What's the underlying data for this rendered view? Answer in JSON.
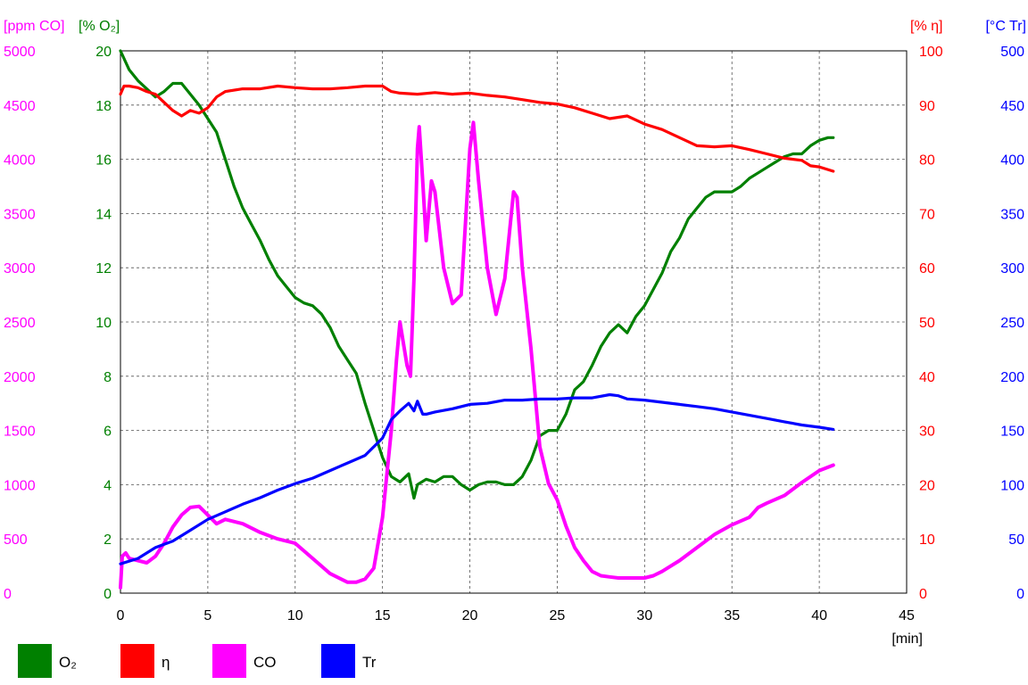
{
  "chart_data": {
    "type": "line",
    "x_unit": "[min]",
    "xlim": [
      0,
      45
    ],
    "x_ticks": [
      0,
      5,
      10,
      15,
      20,
      25,
      30,
      35,
      40,
      45
    ],
    "axes": [
      {
        "id": "co",
        "unit": "[ppm CO]",
        "color": "#ff00ff",
        "side": "left",
        "lim": [
          0,
          5000
        ],
        "ticks": [
          0,
          500,
          1000,
          1500,
          2000,
          2500,
          3000,
          3500,
          4000,
          4500,
          5000
        ]
      },
      {
        "id": "o2",
        "unit": "[% O₂]",
        "color": "#008000",
        "side": "left",
        "lim": [
          0,
          20
        ],
        "ticks": [
          0,
          2,
          4,
          6,
          8,
          10,
          12,
          14,
          16,
          18,
          20
        ]
      },
      {
        "id": "eta",
        "unit": "[% η]",
        "color": "#ff0000",
        "side": "right",
        "lim": [
          0,
          100
        ],
        "ticks": [
          0,
          10,
          20,
          30,
          40,
          50,
          60,
          70,
          80,
          90,
          100
        ]
      },
      {
        "id": "tr",
        "unit": "[°C Tr]",
        "color": "#0000ff",
        "side": "right",
        "lim": [
          0,
          500
        ],
        "ticks": [
          0,
          50,
          100,
          150,
          200,
          250,
          300,
          350,
          400,
          450,
          500
        ]
      }
    ],
    "grid": true,
    "legend_placement": "bottom",
    "series": [
      {
        "name": "O₂",
        "axis": "o2",
        "color": "#008000",
        "points": [
          [
            0,
            20
          ],
          [
            0.5,
            19.3
          ],
          [
            1,
            18.9
          ],
          [
            1.5,
            18.6
          ],
          [
            2,
            18.3
          ],
          [
            2.5,
            18.5
          ],
          [
            3,
            18.8
          ],
          [
            3.5,
            18.8
          ],
          [
            4,
            18.4
          ],
          [
            4.5,
            18.0
          ],
          [
            5,
            17.5
          ],
          [
            5.5,
            17.0
          ],
          [
            6,
            16.0
          ],
          [
            6.5,
            15.0
          ],
          [
            7,
            14.2
          ],
          [
            7.5,
            13.6
          ],
          [
            8,
            13.0
          ],
          [
            8.5,
            12.3
          ],
          [
            9,
            11.7
          ],
          [
            9.5,
            11.3
          ],
          [
            10,
            10.9
          ],
          [
            10.5,
            10.7
          ],
          [
            11,
            10.6
          ],
          [
            11.5,
            10.3
          ],
          [
            12,
            9.8
          ],
          [
            12.5,
            9.1
          ],
          [
            13,
            8.6
          ],
          [
            13.5,
            8.1
          ],
          [
            14,
            7.0
          ],
          [
            14.5,
            6.0
          ],
          [
            15,
            5.0
          ],
          [
            15.5,
            4.3
          ],
          [
            16,
            4.1
          ],
          [
            16.5,
            4.4
          ],
          [
            16.8,
            3.5
          ],
          [
            17,
            4.0
          ],
          [
            17.5,
            4.2
          ],
          [
            18,
            4.1
          ],
          [
            18.5,
            4.3
          ],
          [
            19,
            4.3
          ],
          [
            19.5,
            4.0
          ],
          [
            20,
            3.8
          ],
          [
            20.5,
            4.0
          ],
          [
            21,
            4.1
          ],
          [
            21.5,
            4.1
          ],
          [
            22,
            4.0
          ],
          [
            22.5,
            4.0
          ],
          [
            23,
            4.3
          ],
          [
            23.5,
            4.9
          ],
          [
            24,
            5.8
          ],
          [
            24.5,
            6.0
          ],
          [
            25,
            6.0
          ],
          [
            25.5,
            6.6
          ],
          [
            26,
            7.5
          ],
          [
            26.5,
            7.8
          ],
          [
            27,
            8.4
          ],
          [
            27.5,
            9.1
          ],
          [
            28,
            9.6
          ],
          [
            28.5,
            9.9
          ],
          [
            29,
            9.6
          ],
          [
            29.5,
            10.2
          ],
          [
            30,
            10.6
          ],
          [
            30.5,
            11.2
          ],
          [
            31,
            11.8
          ],
          [
            31.5,
            12.6
          ],
          [
            32,
            13.1
          ],
          [
            32.5,
            13.8
          ],
          [
            33,
            14.2
          ],
          [
            33.5,
            14.6
          ],
          [
            34,
            14.8
          ],
          [
            34.5,
            14.8
          ],
          [
            35,
            14.8
          ],
          [
            35.5,
            15.0
          ],
          [
            36,
            15.3
          ],
          [
            36.5,
            15.5
          ],
          [
            37,
            15.7
          ],
          [
            37.5,
            15.9
          ],
          [
            38,
            16.1
          ],
          [
            38.5,
            16.2
          ],
          [
            39,
            16.2
          ],
          [
            39.5,
            16.5
          ],
          [
            40,
            16.7
          ],
          [
            40.5,
            16.8
          ],
          [
            40.8,
            16.8
          ]
        ]
      },
      {
        "name": "η",
        "axis": "eta",
        "color": "#ff0000",
        "points": [
          [
            0,
            92
          ],
          [
            0.2,
            93.5
          ],
          [
            0.5,
            93.5
          ],
          [
            1,
            93.2
          ],
          [
            1.5,
            92.5
          ],
          [
            2,
            92
          ],
          [
            2.5,
            90.5
          ],
          [
            3,
            89
          ],
          [
            3.5,
            88
          ],
          [
            4,
            89
          ],
          [
            4.5,
            88.5
          ],
          [
            5,
            89.5
          ],
          [
            5.5,
            91.5
          ],
          [
            6,
            92.5
          ],
          [
            7,
            93
          ],
          [
            8,
            93
          ],
          [
            9,
            93.5
          ],
          [
            10,
            93.2
          ],
          [
            11,
            93
          ],
          [
            12,
            93
          ],
          [
            13,
            93.2
          ],
          [
            14,
            93.5
          ],
          [
            15,
            93.5
          ],
          [
            15.5,
            92.5
          ],
          [
            16,
            92.2
          ],
          [
            17,
            92
          ],
          [
            18,
            92.3
          ],
          [
            19,
            92
          ],
          [
            20,
            92.2
          ],
          [
            21,
            91.8
          ],
          [
            22,
            91.5
          ],
          [
            23,
            91
          ],
          [
            24,
            90.5
          ],
          [
            25,
            90.2
          ],
          [
            26,
            89.5
          ],
          [
            27,
            88.5
          ],
          [
            28,
            87.5
          ],
          [
            29,
            88
          ],
          [
            30,
            86.5
          ],
          [
            31,
            85.5
          ],
          [
            32,
            84
          ],
          [
            33,
            82.5
          ],
          [
            34,
            82.3
          ],
          [
            35,
            82.5
          ],
          [
            36,
            81.8
          ],
          [
            37,
            81
          ],
          [
            38,
            80.2
          ],
          [
            39,
            79.8
          ],
          [
            39.5,
            78.8
          ],
          [
            40,
            78.6
          ],
          [
            40.8,
            77.8
          ]
        ]
      },
      {
        "name": "CO",
        "axis": "co",
        "color": "#ff00ff",
        "points": [
          [
            0,
            50
          ],
          [
            0.1,
            340
          ],
          [
            0.3,
            370
          ],
          [
            0.5,
            320
          ],
          [
            1,
            300
          ],
          [
            1.5,
            280
          ],
          [
            2,
            340
          ],
          [
            2.5,
            460
          ],
          [
            3,
            610
          ],
          [
            3.5,
            720
          ],
          [
            4,
            790
          ],
          [
            4.5,
            800
          ],
          [
            5,
            720
          ],
          [
            5.5,
            640
          ],
          [
            6,
            680
          ],
          [
            7,
            640
          ],
          [
            8,
            560
          ],
          [
            9,
            500
          ],
          [
            10,
            460
          ],
          [
            11,
            320
          ],
          [
            12,
            180
          ],
          [
            13,
            100
          ],
          [
            13.5,
            100
          ],
          [
            14,
            130
          ],
          [
            14.5,
            230
          ],
          [
            15,
            700
          ],
          [
            15.5,
            1500
          ],
          [
            15.8,
            2150
          ],
          [
            16,
            2500
          ],
          [
            16.4,
            2100
          ],
          [
            16.6,
            2000
          ],
          [
            16.8,
            2900
          ],
          [
            17,
            4100
          ],
          [
            17.1,
            4300
          ],
          [
            17.3,
            3800
          ],
          [
            17.5,
            3250
          ],
          [
            17.8,
            3800
          ],
          [
            18,
            3700
          ],
          [
            18.5,
            3000
          ],
          [
            19,
            2670
          ],
          [
            19.5,
            2750
          ],
          [
            20,
            4100
          ],
          [
            20.2,
            4340
          ],
          [
            20.5,
            3800
          ],
          [
            21,
            3000
          ],
          [
            21.5,
            2570
          ],
          [
            22,
            2900
          ],
          [
            22.5,
            3700
          ],
          [
            22.7,
            3650
          ],
          [
            23,
            3000
          ],
          [
            23.5,
            2250
          ],
          [
            24,
            1350
          ],
          [
            24.5,
            1010
          ],
          [
            25,
            860
          ],
          [
            25.5,
            620
          ],
          [
            26,
            420
          ],
          [
            26.5,
            300
          ],
          [
            27,
            200
          ],
          [
            27.5,
            160
          ],
          [
            28,
            150
          ],
          [
            28.5,
            140
          ],
          [
            29,
            140
          ],
          [
            30,
            140
          ],
          [
            30.5,
            160
          ],
          [
            31,
            200
          ],
          [
            32,
            300
          ],
          [
            33,
            420
          ],
          [
            34,
            540
          ],
          [
            35,
            630
          ],
          [
            36,
            700
          ],
          [
            36.5,
            790
          ],
          [
            37,
            830
          ],
          [
            38,
            900
          ],
          [
            39,
            1020
          ],
          [
            40,
            1130
          ],
          [
            40.8,
            1180
          ]
        ]
      },
      {
        "name": "Tr",
        "axis": "tr",
        "color": "#0000ff",
        "points": [
          [
            0,
            27
          ],
          [
            1,
            32
          ],
          [
            2,
            42
          ],
          [
            3,
            48
          ],
          [
            4,
            58
          ],
          [
            5,
            68
          ],
          [
            6,
            75
          ],
          [
            7,
            82
          ],
          [
            8,
            88
          ],
          [
            9,
            95
          ],
          [
            10,
            101
          ],
          [
            11,
            106
          ],
          [
            12,
            113
          ],
          [
            13,
            120
          ],
          [
            14,
            127
          ],
          [
            15,
            143
          ],
          [
            15.5,
            160
          ],
          [
            16,
            168
          ],
          [
            16.5,
            175
          ],
          [
            16.8,
            168
          ],
          [
            17,
            177
          ],
          [
            17.3,
            165
          ],
          [
            17.5,
            165
          ],
          [
            18,
            167
          ],
          [
            19,
            170
          ],
          [
            20,
            174
          ],
          [
            21,
            175
          ],
          [
            22,
            178
          ],
          [
            23,
            178
          ],
          [
            24,
            179
          ],
          [
            25,
            179
          ],
          [
            26,
            180
          ],
          [
            27,
            180
          ],
          [
            28,
            183
          ],
          [
            28.5,
            182
          ],
          [
            29,
            179
          ],
          [
            30,
            178
          ],
          [
            31,
            176
          ],
          [
            32,
            174
          ],
          [
            33,
            172
          ],
          [
            34,
            170
          ],
          [
            35,
            167
          ],
          [
            36,
            164
          ],
          [
            37,
            161
          ],
          [
            38,
            158
          ],
          [
            39,
            155
          ],
          [
            40,
            153
          ],
          [
            40.8,
            151
          ]
        ]
      }
    ]
  }
}
